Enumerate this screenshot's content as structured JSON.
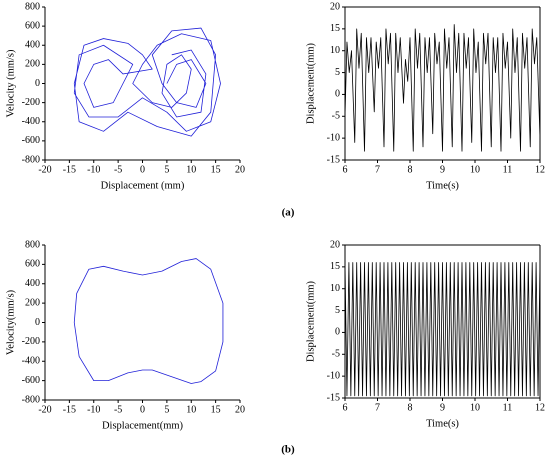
{
  "panel_labels": [
    "(a)",
    "(b)"
  ],
  "chart_data": [
    {
      "type": "line",
      "xlabel": "Displacement (mm)",
      "ylabel": "Velocity (mm/s)",
      "color": "#2020d8",
      "box": false,
      "xlim": [
        -20,
        20
      ],
      "xticks": [
        -20,
        -15,
        -10,
        -5,
        0,
        5,
        10,
        15,
        20
      ],
      "ylim": [
        -800,
        800
      ],
      "yticks": [
        -800,
        -600,
        -400,
        -200,
        0,
        200,
        400,
        600,
        800
      ],
      "x": [
        5,
        7,
        10,
        13,
        11,
        7,
        4,
        2,
        6,
        12,
        15,
        14,
        10,
        3,
        -3,
        -8,
        -13,
        -14,
        -12,
        -8,
        -3,
        0,
        2,
        -4,
        -7,
        -10,
        -12,
        -10,
        -6,
        -4,
        -2,
        -8,
        -13,
        -14,
        -11,
        -5,
        0,
        5,
        9,
        14,
        16,
        14,
        8,
        3,
        0,
        -2,
        2,
        6,
        9,
        10,
        8,
        5,
        4,
        7,
        12,
        13,
        10,
        6
      ],
      "y": [
        0,
        200,
        250,
        0,
        -250,
        -200,
        0,
        300,
        550,
        580,
        300,
        -300,
        -550,
        -450,
        -300,
        -500,
        -400,
        0,
        400,
        470,
        420,
        300,
        150,
        100,
        250,
        200,
        0,
        -250,
        -200,
        0,
        200,
        400,
        300,
        -100,
        -350,
        -350,
        -150,
        -300,
        -500,
        -400,
        0,
        450,
        520,
        400,
        200,
        0,
        -200,
        -250,
        -100,
        150,
        300,
        200,
        -100,
        -350,
        -300,
        100,
        350,
        300
      ]
    },
    {
      "type": "line",
      "xlabel": "Time(s)",
      "ylabel": "Displacement(mm)",
      "color": "#000000",
      "box": true,
      "xlim": [
        6,
        12
      ],
      "xticks": [
        6,
        7,
        8,
        9,
        10,
        11,
        12
      ],
      "ylim": [
        -15,
        20
      ],
      "yticks": [
        -15,
        -10,
        -5,
        0,
        5,
        10,
        15,
        20
      ],
      "x": [
        6,
        6.06,
        6.13,
        6.2,
        6.3,
        6.36,
        6.43,
        6.5,
        6.6,
        6.66,
        6.73,
        6.8,
        6.9,
        6.96,
        7.03,
        7.1,
        7.2,
        7.26,
        7.33,
        7.4,
        7.5,
        7.56,
        7.63,
        7.7,
        7.8,
        7.86,
        7.93,
        8,
        8.1,
        8.16,
        8.23,
        8.3,
        8.4,
        8.46,
        8.53,
        8.6,
        8.7,
        8.76,
        8.83,
        8.9,
        9,
        9.06,
        9.13,
        9.2,
        9.3,
        9.36,
        9.43,
        9.5,
        9.6,
        9.66,
        9.73,
        9.8,
        9.9,
        9.96,
        10.03,
        10.1,
        10.2,
        10.26,
        10.33,
        10.4,
        10.5,
        10.56,
        10.63,
        10.7,
        10.8,
        10.86,
        10.93,
        11,
        11.1,
        11.16,
        11.23,
        11.3,
        11.4,
        11.46,
        11.53,
        11.6,
        11.7,
        11.76,
        11.83,
        11.9,
        12
      ],
      "y": [
        -5,
        12,
        5,
        10,
        -11,
        15,
        6,
        14,
        -13,
        13,
        5,
        13,
        -4,
        12,
        6,
        13,
        -12,
        15,
        7,
        14,
        -13,
        14,
        5,
        13,
        -2,
        8,
        3,
        13,
        -13,
        15,
        6,
        14,
        -12,
        13,
        5,
        13,
        -9,
        14,
        7,
        12,
        -13,
        15,
        6,
        13,
        -12,
        16,
        5,
        14,
        -13,
        14,
        6,
        13,
        -11,
        15,
        5,
        12,
        -13,
        14,
        7,
        14,
        -12,
        13,
        5,
        13,
        -13,
        14,
        6,
        12,
        -10,
        15,
        5,
        13,
        -13,
        14,
        6,
        13,
        -12,
        15,
        7,
        13,
        -10
      ]
    },
    {
      "type": "line",
      "xlabel": "Displacement(mm)",
      "ylabel": "Velocity(mm/s)",
      "color": "#2020d8",
      "box": false,
      "xlim": [
        -20,
        20
      ],
      "xticks": [
        -20,
        -15,
        -10,
        -5,
        0,
        5,
        10,
        15,
        20
      ],
      "ylim": [
        -800,
        800
      ],
      "yticks": [
        -800,
        -600,
        -400,
        -200,
        0,
        200,
        400,
        600,
        800
      ],
      "x": [
        -14,
        -13.5,
        -11,
        -8,
        -4,
        0,
        4,
        8,
        11,
        14,
        16.5,
        16.5,
        15,
        12,
        10,
        6,
        2,
        0,
        -3,
        -7,
        -10,
        -13,
        -14
      ],
      "y": [
        0,
        300,
        550,
        580,
        530,
        490,
        530,
        630,
        660,
        550,
        200,
        -200,
        -500,
        -610,
        -630,
        -560,
        -490,
        -490,
        -520,
        -600,
        -600,
        -350,
        0
      ]
    },
    {
      "type": "line",
      "xlabel": "Time(s)",
      "ylabel": "Displacement(mm)",
      "color": "#000000",
      "box": true,
      "xlim": [
        6,
        12
      ],
      "xticks": [
        6,
        7,
        8,
        9,
        10,
        11,
        12
      ],
      "ylim": [
        -15,
        20
      ],
      "yticks": [
        -15,
        -10,
        -5,
        0,
        5,
        10,
        15,
        20
      ],
      "x": [
        6,
        6.06,
        6.12,
        6.18,
        6.24,
        6.3,
        6.36,
        6.42,
        6.48,
        6.54,
        6.6,
        6.66,
        6.72,
        6.78,
        6.84,
        6.9,
        6.96,
        7.02,
        7.08,
        7.14,
        7.2,
        7.26,
        7.32,
        7.38,
        7.44,
        7.5,
        7.56,
        7.62,
        7.68,
        7.74,
        7.8,
        7.86,
        7.92,
        7.98,
        8.04,
        8.1,
        8.16,
        8.22,
        8.28,
        8.34,
        8.4,
        8.46,
        8.52,
        8.58,
        8.64,
        8.7,
        8.76,
        8.82,
        8.88,
        8.94,
        9,
        9.06,
        9.12,
        9.18,
        9.24,
        9.3,
        9.36,
        9.42,
        9.48,
        9.54,
        9.6,
        9.66,
        9.72,
        9.78,
        9.84,
        9.9,
        9.96,
        10.02,
        10.08,
        10.14,
        10.2,
        10.26,
        10.32,
        10.38,
        10.44,
        10.5,
        10.56,
        10.62,
        10.68,
        10.74,
        10.8,
        10.86,
        10.92,
        10.98,
        11.04,
        11.1,
        11.16,
        11.22,
        11.28,
        11.34,
        11.4,
        11.46,
        11.52,
        11.58,
        11.64,
        11.7,
        11.76,
        11.82,
        11.88,
        11.94,
        12
      ],
      "y": [
        16,
        -14.5,
        16,
        -14.5,
        16,
        -14.5,
        16,
        -14.5,
        16,
        -14.5,
        16,
        -14.5,
        16,
        -14.5,
        16,
        -14.5,
        16,
        -14.5,
        16,
        -14.5,
        16,
        -14.5,
        16,
        -14.5,
        16,
        -14.5,
        16,
        -14.5,
        16,
        -14.5,
        16,
        -14.5,
        16,
        -14.5,
        16,
        -14.5,
        16,
        -14.5,
        16,
        -14.5,
        16,
        -14.5,
        16,
        -14.5,
        16,
        -14.5,
        16,
        -14.5,
        16,
        -14.5,
        16,
        -14.5,
        16,
        -14.5,
        16,
        -14.5,
        16,
        -14.5,
        16,
        -14.5,
        16,
        -14.5,
        16,
        -14.5,
        16,
        -14.5,
        16,
        -14.5,
        16,
        -14.5,
        16,
        -14.5,
        16,
        -14.5,
        16,
        -14.5,
        16,
        -14.5,
        16,
        -14.5,
        16,
        -14.5,
        16,
        -14.5,
        16,
        -14.5,
        16,
        -14.5,
        16,
        -14.5,
        16,
        -14.5,
        16,
        -14.5,
        16,
        -14.5,
        16,
        -14.5,
        16,
        -14.5,
        16
      ]
    }
  ]
}
